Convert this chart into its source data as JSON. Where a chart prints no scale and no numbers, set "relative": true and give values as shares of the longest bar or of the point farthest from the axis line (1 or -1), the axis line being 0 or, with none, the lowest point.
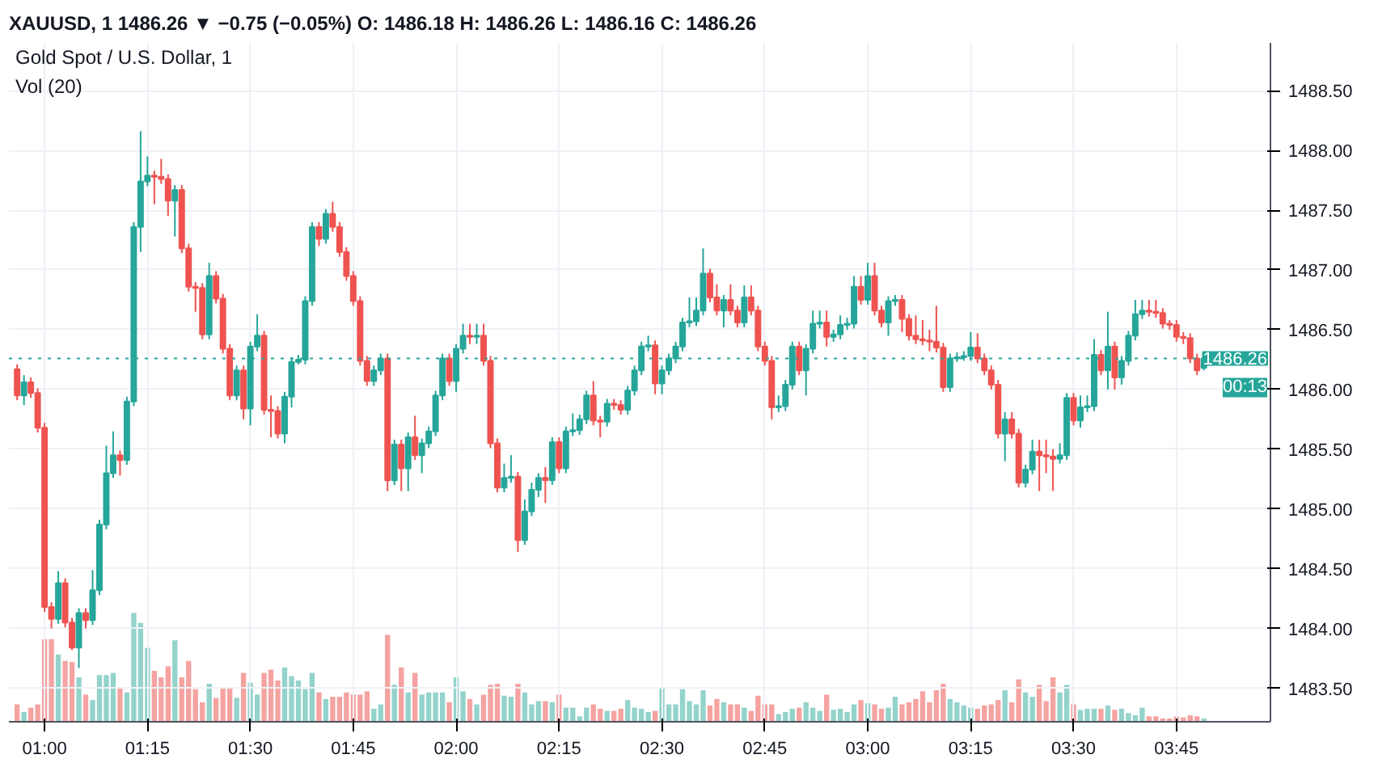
{
  "chart_data": [
    {
      "type": "candlestick",
      "title": "XAUUSD, 1  1486.26 ▼ −0.75 (−0.05%)  O: 1486.18  H: 1486.26  L: 1486.16  C: 1486.26",
      "subtitle": "Gold Spot / U.S. Dollar, 1",
      "grid": true,
      "ylim": [
        1483.22,
        1488.9
      ],
      "yticks": [
        {
          "value": 1483.5,
          "label": "1483.50"
        },
        {
          "value": 1484,
          "label": "1484.00"
        },
        {
          "value": 1484.5,
          "label": "1484.50"
        },
        {
          "value": 1485,
          "label": "1485.00"
        },
        {
          "value": 1485.5,
          "label": "1485.50"
        },
        {
          "value": 1486,
          "label": "1486.00"
        },
        {
          "value": 1486.5,
          "label": "1486.50"
        },
        {
          "value": 1487,
          "label": "1487.00"
        },
        {
          "value": 1487.5,
          "label": "1487.50"
        },
        {
          "value": 1488,
          "label": "1488.00"
        },
        {
          "value": 1488.5,
          "label": "1488.50"
        }
      ],
      "ref_lines": [
        {
          "axis": "y",
          "value": 1486.26,
          "label": "1486.26",
          "color": "#26a69a",
          "line_style": "dotted"
        }
      ],
      "annotations": [
        "00:13"
      ],
      "categories": [
        null,
        null,
        null,
        null,
        "01:00",
        null,
        null,
        null,
        null,
        null,
        null,
        null,
        null,
        null,
        null,
        null,
        null,
        null,
        null,
        "01:15",
        null,
        null,
        null,
        null,
        null,
        null,
        null,
        null,
        null,
        null,
        null,
        null,
        null,
        null,
        "01:30",
        null,
        null,
        null,
        null,
        null,
        null,
        null,
        null,
        null,
        null,
        null,
        null,
        null,
        null,
        "01:45",
        null,
        null,
        null,
        null,
        null,
        null,
        null,
        null,
        null,
        null,
        null,
        null,
        null,
        null,
        "02:00",
        null,
        null,
        null,
        null,
        null,
        null,
        null,
        null,
        null,
        null,
        null,
        null,
        null,
        null,
        "02:15",
        null,
        null,
        null,
        null,
        null,
        null,
        null,
        null,
        null,
        null,
        null,
        null,
        null,
        null,
        "02:30",
        null,
        null,
        null,
        null,
        null,
        null,
        null,
        null,
        null,
        null,
        null,
        null,
        null,
        null,
        "02:45",
        null,
        null,
        null,
        null,
        null,
        null,
        null,
        null,
        null,
        null,
        null,
        null,
        null,
        null,
        "03:00",
        null,
        null,
        null,
        null,
        null,
        null,
        null,
        null,
        null,
        null,
        null,
        null,
        null,
        null,
        "03:15",
        null,
        null,
        null,
        null,
        null,
        null,
        null,
        null,
        null,
        null,
        null,
        null,
        null,
        null,
        "03:30",
        null,
        null,
        null,
        null,
        null,
        null,
        null,
        null,
        null,
        null,
        null,
        null,
        null,
        null,
        "03:45",
        null,
        null,
        null,
        null
      ],
      "ohlc": [
        [
          1486.17,
          1486.21,
          1485.91,
          1485.95
        ],
        [
          1485.95,
          1486.12,
          1485.87,
          1486.06
        ],
        [
          1486.06,
          1486.1,
          1485.93,
          1485.97
        ],
        [
          1485.97,
          1486.01,
          1485.64,
          1485.68
        ],
        [
          1485.68,
          1485.72,
          1484.14,
          1484.18
        ],
        [
          1484.18,
          1484.22,
          1484.0,
          1484.08
        ],
        [
          1484.08,
          1484.48,
          1484.04,
          1484.38
        ],
        [
          1484.38,
          1484.42,
          1484.01,
          1484.05
        ],
        [
          1484.05,
          1484.09,
          1483.82,
          1483.84
        ],
        [
          1483.84,
          1484.17,
          1483.67,
          1484.13
        ],
        [
          1484.13,
          1484.17,
          1484.0,
          1484.07
        ],
        [
          1484.07,
          1484.49,
          1484.03,
          1484.32
        ],
        [
          1484.32,
          1484.91,
          1484.28,
          1484.87
        ],
        [
          1484.87,
          1485.53,
          1484.83,
          1485.3
        ],
        [
          1485.3,
          1485.65,
          1485.26,
          1485.45
        ],
        [
          1485.45,
          1485.49,
          1485.28,
          1485.41
        ],
        [
          1485.41,
          1485.94,
          1485.37,
          1485.9
        ],
        [
          1485.9,
          1487.4,
          1485.86,
          1487.36
        ],
        [
          1487.36,
          1488.16,
          1487.15,
          1487.74
        ],
        [
          1487.74,
          1487.95,
          1487.7,
          1487.79
        ],
        [
          1487.79,
          1487.83,
          1487.55,
          1487.78
        ],
        [
          1487.78,
          1487.93,
          1487.72,
          1487.76
        ],
        [
          1487.76,
          1487.8,
          1487.45,
          1487.58
        ],
        [
          1487.58,
          1487.71,
          1487.28,
          1487.67
        ],
        [
          1487.67,
          1487.71,
          1487.14,
          1487.18
        ],
        [
          1487.18,
          1487.22,
          1486.82,
          1486.86
        ],
        [
          1486.86,
          1486.9,
          1486.65,
          1486.85
        ],
        [
          1486.85,
          1486.89,
          1486.42,
          1486.46
        ],
        [
          1486.46,
          1487.06,
          1486.42,
          1486.95
        ],
        [
          1486.95,
          1486.99,
          1486.72,
          1486.76
        ],
        [
          1486.76,
          1486.8,
          1486.3,
          1486.34
        ],
        [
          1486.34,
          1486.38,
          1485.91,
          1485.95
        ],
        [
          1485.95,
          1486.2,
          1485.91,
          1486.16
        ],
        [
          1486.16,
          1486.2,
          1485.75,
          1485.84
        ],
        [
          1485.84,
          1486.4,
          1485.7,
          1486.36
        ],
        [
          1486.36,
          1486.63,
          1486.32,
          1486.45
        ],
        [
          1486.45,
          1486.49,
          1485.79,
          1485.83
        ],
        [
          1485.83,
          1485.95,
          1485.6,
          1485.82
        ],
        [
          1485.82,
          1485.86,
          1485.59,
          1485.63
        ],
        [
          1485.63,
          1485.98,
          1485.55,
          1485.94
        ],
        [
          1485.94,
          1486.27,
          1485.85,
          1486.23
        ],
        [
          1486.23,
          1486.29,
          1486.21,
          1486.25
        ],
        [
          1486.25,
          1486.78,
          1486.21,
          1486.74
        ],
        [
          1486.74,
          1487.4,
          1486.7,
          1487.36
        ],
        [
          1487.36,
          1487.4,
          1487.2,
          1487.26
        ],
        [
          1487.26,
          1487.51,
          1487.22,
          1487.47
        ],
        [
          1487.47,
          1487.57,
          1487.32,
          1487.36
        ],
        [
          1487.36,
          1487.4,
          1487.11,
          1487.15
        ],
        [
          1487.15,
          1487.19,
          1486.91,
          1486.95
        ],
        [
          1486.95,
          1486.99,
          1486.7,
          1486.74
        ],
        [
          1486.74,
          1486.78,
          1486.2,
          1486.24
        ],
        [
          1486.24,
          1486.28,
          1486.03,
          1486.07
        ],
        [
          1486.07,
          1486.2,
          1486.03,
          1486.16
        ],
        [
          1486.16,
          1486.3,
          1486.12,
          1486.26
        ],
        [
          1486.26,
          1486.3,
          1485.15,
          1485.24
        ],
        [
          1485.24,
          1485.58,
          1485.2,
          1485.54
        ],
        [
          1485.54,
          1485.58,
          1485.15,
          1485.34
        ],
        [
          1485.34,
          1485.64,
          1485.15,
          1485.6
        ],
        [
          1485.6,
          1485.78,
          1485.41,
          1485.45
        ],
        [
          1485.45,
          1485.59,
          1485.3,
          1485.55
        ],
        [
          1485.55,
          1485.69,
          1485.51,
          1485.65
        ],
        [
          1485.65,
          1485.99,
          1485.61,
          1485.95
        ],
        [
          1485.95,
          1486.3,
          1485.91,
          1486.26
        ],
        [
          1486.26,
          1486.3,
          1486.03,
          1486.07
        ],
        [
          1486.07,
          1486.38,
          1485.98,
          1486.34
        ],
        [
          1486.34,
          1486.55,
          1486.3,
          1486.45
        ],
        [
          1486.45,
          1486.55,
          1486.38,
          1486.44
        ],
        [
          1486.44,
          1486.55,
          1486.38,
          1486.45
        ],
        [
          1486.45,
          1486.55,
          1486.2,
          1486.24
        ],
        [
          1486.24,
          1486.28,
          1485.51,
          1485.55
        ],
        [
          1485.55,
          1485.59,
          1485.14,
          1485.18
        ],
        [
          1485.18,
          1485.38,
          1485.14,
          1485.26
        ],
        [
          1485.26,
          1485.45,
          1485.22,
          1485.27
        ],
        [
          1485.27,
          1485.31,
          1484.64,
          1484.74
        ],
        [
          1484.74,
          1485.08,
          1484.7,
          1484.98
        ],
        [
          1484.98,
          1485.22,
          1484.94,
          1485.16
        ],
        [
          1485.16,
          1485.3,
          1485.1,
          1485.26
        ],
        [
          1485.26,
          1485.35,
          1485.05,
          1485.24
        ],
        [
          1485.24,
          1485.6,
          1485.2,
          1485.56
        ],
        [
          1485.56,
          1485.6,
          1485.3,
          1485.34
        ],
        [
          1485.34,
          1485.69,
          1485.3,
          1485.65
        ],
        [
          1485.65,
          1485.8,
          1485.61,
          1485.66
        ],
        [
          1485.66,
          1485.79,
          1485.62,
          1485.75
        ],
        [
          1485.75,
          1485.99,
          1485.71,
          1485.95
        ],
        [
          1485.95,
          1486.07,
          1485.7,
          1485.74
        ],
        [
          1485.74,
          1485.78,
          1485.6,
          1485.73
        ],
        [
          1485.73,
          1485.92,
          1485.69,
          1485.88
        ],
        [
          1485.88,
          1485.92,
          1485.83,
          1485.87
        ],
        [
          1485.87,
          1485.91,
          1485.79,
          1485.83
        ],
        [
          1485.83,
          1486.03,
          1485.79,
          1485.99
        ],
        [
          1485.99,
          1486.2,
          1485.95,
          1486.16
        ],
        [
          1486.16,
          1486.4,
          1486.12,
          1486.36
        ],
        [
          1486.36,
          1486.45,
          1486.32,
          1486.37
        ],
        [
          1486.37,
          1486.41,
          1485.96,
          1486.05
        ],
        [
          1486.05,
          1486.2,
          1485.96,
          1486.16
        ],
        [
          1486.16,
          1486.3,
          1486.12,
          1486.26
        ],
        [
          1486.26,
          1486.4,
          1486.22,
          1486.36
        ],
        [
          1486.36,
          1486.6,
          1486.32,
          1486.56
        ],
        [
          1486.56,
          1486.77,
          1486.52,
          1486.57
        ],
        [
          1486.57,
          1486.77,
          1486.53,
          1486.66
        ],
        [
          1486.66,
          1487.18,
          1486.62,
          1486.97
        ],
        [
          1486.97,
          1487.01,
          1486.73,
          1486.77
        ],
        [
          1486.77,
          1486.88,
          1486.62,
          1486.66
        ],
        [
          1486.66,
          1486.79,
          1486.52,
          1486.75
        ],
        [
          1486.75,
          1486.88,
          1486.62,
          1486.66
        ],
        [
          1486.66,
          1486.7,
          1486.52,
          1486.56
        ],
        [
          1486.56,
          1486.87,
          1486.52,
          1486.77
        ],
        [
          1486.77,
          1486.87,
          1486.62,
          1486.66
        ],
        [
          1486.66,
          1486.7,
          1486.32,
          1486.36
        ],
        [
          1486.36,
          1486.4,
          1486.2,
          1486.24
        ],
        [
          1486.24,
          1486.28,
          1485.75,
          1485.85
        ],
        [
          1485.85,
          1485.95,
          1485.81,
          1485.86
        ],
        [
          1485.86,
          1486.08,
          1485.82,
          1486.04
        ],
        [
          1486.04,
          1486.4,
          1486.0,
          1486.36
        ],
        [
          1486.36,
          1486.4,
          1486.12,
          1486.16
        ],
        [
          1486.16,
          1486.38,
          1485.95,
          1486.34
        ],
        [
          1486.34,
          1486.66,
          1486.3,
          1486.55
        ],
        [
          1486.55,
          1486.66,
          1486.51,
          1486.56
        ],
        [
          1486.56,
          1486.66,
          1486.36,
          1486.44
        ],
        [
          1486.44,
          1486.5,
          1486.4,
          1486.46
        ],
        [
          1486.46,
          1486.62,
          1486.42,
          1486.54
        ],
        [
          1486.54,
          1486.6,
          1486.5,
          1486.55
        ],
        [
          1486.55,
          1486.95,
          1486.51,
          1486.86
        ],
        [
          1486.86,
          1486.95,
          1486.71,
          1486.75
        ],
        [
          1486.75,
          1487.06,
          1486.71,
          1486.95
        ],
        [
          1486.95,
          1487.06,
          1486.62,
          1486.66
        ],
        [
          1486.66,
          1486.7,
          1486.52,
          1486.56
        ],
        [
          1486.56,
          1486.78,
          1486.45,
          1486.74
        ],
        [
          1486.74,
          1486.79,
          1486.7,
          1486.75
        ],
        [
          1486.75,
          1486.79,
          1486.48,
          1486.59
        ],
        [
          1486.59,
          1486.63,
          1486.41,
          1486.45
        ],
        [
          1486.45,
          1486.62,
          1486.38,
          1486.42
        ],
        [
          1486.42,
          1486.58,
          1486.37,
          1486.41
        ],
        [
          1486.41,
          1486.5,
          1486.32,
          1486.4
        ],
        [
          1486.4,
          1486.7,
          1486.31,
          1486.35
        ],
        [
          1486.35,
          1486.39,
          1485.98,
          1486.02
        ],
        [
          1486.02,
          1486.3,
          1485.98,
          1486.26
        ],
        [
          1486.26,
          1486.31,
          1486.23,
          1486.27
        ],
        [
          1486.27,
          1486.32,
          1486.24,
          1486.28
        ],
        [
          1486.28,
          1486.48,
          1486.24,
          1486.35
        ],
        [
          1486.35,
          1486.47,
          1486.22,
          1486.26
        ],
        [
          1486.26,
          1486.3,
          1486.12,
          1486.16
        ],
        [
          1486.16,
          1486.2,
          1486.0,
          1486.04
        ],
        [
          1486.04,
          1486.08,
          1485.59,
          1485.63
        ],
        [
          1485.63,
          1485.81,
          1485.4,
          1485.75
        ],
        [
          1485.75,
          1485.81,
          1485.59,
          1485.63
        ],
        [
          1485.63,
          1485.67,
          1485.18,
          1485.22
        ],
        [
          1485.22,
          1485.37,
          1485.18,
          1485.33
        ],
        [
          1485.33,
          1485.58,
          1485.29,
          1485.48
        ],
        [
          1485.48,
          1485.58,
          1485.15,
          1485.45
        ],
        [
          1485.45,
          1485.58,
          1485.3,
          1485.44
        ],
        [
          1485.44,
          1485.5,
          1485.15,
          1485.42
        ],
        [
          1485.42,
          1485.55,
          1485.38,
          1485.45
        ],
        [
          1485.45,
          1485.97,
          1485.41,
          1485.93
        ],
        [
          1485.93,
          1485.97,
          1485.7,
          1485.74
        ],
        [
          1485.74,
          1485.95,
          1485.68,
          1485.85
        ],
        [
          1485.85,
          1485.95,
          1485.81,
          1485.86
        ],
        [
          1485.86,
          1486.42,
          1485.82,
          1486.29
        ],
        [
          1486.29,
          1486.33,
          1486.12,
          1486.16
        ],
        [
          1486.16,
          1486.65,
          1486.0,
          1486.36
        ],
        [
          1486.36,
          1486.4,
          1486.0,
          1486.1
        ],
        [
          1486.1,
          1486.28,
          1486.04,
          1486.24
        ],
        [
          1486.24,
          1486.49,
          1486.2,
          1486.45
        ],
        [
          1486.45,
          1486.75,
          1486.41,
          1486.63
        ],
        [
          1486.63,
          1486.75,
          1486.59,
          1486.66
        ],
        [
          1486.66,
          1486.75,
          1486.61,
          1486.65
        ],
        [
          1486.65,
          1486.75,
          1486.6,
          1486.64
        ],
        [
          1486.64,
          1486.68,
          1486.51,
          1486.55
        ],
        [
          1486.55,
          1486.58,
          1486.5,
          1486.54
        ],
        [
          1486.54,
          1486.58,
          1486.4,
          1486.44
        ],
        [
          1486.44,
          1486.48,
          1486.38,
          1486.43
        ],
        [
          1486.43,
          1486.47,
          1486.22,
          1486.26
        ],
        [
          1486.26,
          1486.3,
          1486.12,
          1486.16
        ],
        [
          1486.18,
          1486.26,
          1486.16,
          1486.26
        ]
      ],
      "colors": [
        "#ef5350",
        "#26a69a",
        "#ef5350",
        "#ef5350",
        "#ef5350",
        "#ef5350",
        "#26a69a",
        "#ef5350",
        "#ef5350",
        "#26a69a",
        "#ef5350",
        "#26a69a",
        "#26a69a",
        "#26a69a",
        "#26a69a",
        "#ef5350",
        "#26a69a",
        "#26a69a",
        "#26a69a",
        "#26a69a",
        "#ef5350",
        "#ef5350",
        "#ef5350",
        "#26a69a",
        "#ef5350",
        "#ef5350",
        "#ef5350",
        "#ef5350",
        "#26a69a",
        "#ef5350",
        "#ef5350",
        "#ef5350",
        "#26a69a",
        "#ef5350",
        "#26a69a",
        "#26a69a",
        "#ef5350",
        "#ef5350",
        "#ef5350",
        "#26a69a",
        "#26a69a",
        "#26a69a",
        "#26a69a",
        "#26a69a",
        "#ef5350",
        "#26a69a",
        "#ef5350",
        "#ef5350",
        "#ef5350",
        "#ef5350",
        "#ef5350",
        "#ef5350",
        "#26a69a",
        "#26a69a",
        "#ef5350",
        "#26a69a",
        "#ef5350",
        "#26a69a",
        "#ef5350",
        "#26a69a",
        "#26a69a",
        "#26a69a",
        "#26a69a",
        "#ef5350",
        "#26a69a",
        "#26a69a",
        "#ef5350",
        "#26a69a",
        "#ef5350",
        "#ef5350",
        "#ef5350",
        "#26a69a",
        "#26a69a",
        "#ef5350",
        "#26a69a",
        "#26a69a",
        "#26a69a",
        "#ef5350",
        "#26a69a",
        "#ef5350",
        "#26a69a",
        "#26a69a",
        "#26a69a",
        "#26a69a",
        "#ef5350",
        "#ef5350",
        "#26a69a",
        "#ef5350",
        "#ef5350",
        "#26a69a",
        "#26a69a",
        "#26a69a",
        "#26a69a",
        "#ef5350",
        "#26a69a",
        "#26a69a",
        "#26a69a",
        "#26a69a",
        "#26a69a",
        "#26a69a",
        "#26a69a",
        "#ef5350",
        "#ef5350",
        "#26a69a",
        "#ef5350",
        "#ef5350",
        "#26a69a",
        "#ef5350",
        "#ef5350",
        "#ef5350",
        "#ef5350",
        "#26a69a",
        "#26a69a",
        "#26a69a",
        "#ef5350",
        "#26a69a",
        "#26a69a",
        "#26a69a",
        "#ef5350",
        "#26a69a",
        "#26a69a",
        "#26a69a",
        "#26a69a",
        "#ef5350",
        "#26a69a",
        "#ef5350",
        "#ef5350",
        "#26a69a",
        "#26a69a",
        "#ef5350",
        "#ef5350",
        "#ef5350",
        "#ef5350",
        "#ef5350",
        "#ef5350",
        "#ef5350",
        "#26a69a",
        "#26a69a",
        "#26a69a",
        "#26a69a",
        "#ef5350",
        "#ef5350",
        "#ef5350",
        "#ef5350",
        "#26a69a",
        "#ef5350",
        "#ef5350",
        "#26a69a",
        "#26a69a",
        "#ef5350",
        "#ef5350",
        "#ef5350",
        "#26a69a",
        "#26a69a",
        "#ef5350",
        "#26a69a",
        "#26a69a",
        "#26a69a",
        "#ef5350",
        "#26a69a",
        "#ef5350",
        "#26a69a",
        "#26a69a",
        "#26a69a",
        "#26a69a",
        "#ef5350",
        "#ef5350",
        "#ef5350",
        "#ef5350",
        "#ef5350",
        "#ef5350",
        "#ef5350",
        "#ef5350",
        "#26a69a"
      ]
    },
    {
      "type": "bar",
      "title": "Vol (20)",
      "relative": true,
      "categories": [
        null,
        null,
        null,
        null,
        null,
        null,
        null,
        null,
        null,
        null,
        null,
        null,
        null,
        null,
        null,
        null,
        null,
        null,
        null,
        null,
        null,
        null,
        null,
        null,
        null,
        null,
        null,
        null,
        null,
        null,
        null,
        null,
        null,
        null,
        null,
        null,
        null,
        null,
        null,
        null,
        null,
        null,
        null,
        null,
        null,
        null,
        null,
        null,
        null,
        null,
        null,
        null,
        null,
        null,
        null,
        null,
        null,
        null,
        null,
        null,
        null,
        null,
        null,
        null,
        null,
        null,
        null,
        null,
        null,
        null,
        null,
        null,
        null,
        null,
        null,
        null,
        null,
        null,
        null,
        null,
        null,
        null,
        null,
        null,
        null,
        null,
        null,
        null,
        null,
        null,
        null,
        null,
        null,
        null,
        null,
        null,
        null,
        null,
        null,
        null,
        null,
        null,
        null,
        null,
        null,
        null,
        null,
        null,
        null,
        null,
        null,
        null,
        null,
        null,
        null,
        null,
        null,
        null,
        null,
        null,
        null,
        null,
        null,
        null,
        null,
        null,
        null,
        null,
        null,
        null,
        null,
        null,
        null,
        null,
        null,
        null,
        null,
        null,
        null,
        null,
        null,
        null,
        null,
        null,
        null,
        null,
        null,
        null,
        null,
        null,
        null,
        null,
        null,
        null,
        null,
        null,
        null,
        null,
        null,
        null,
        null,
        null,
        null,
        null,
        null,
        null,
        null,
        null,
        null,
        null,
        null,
        null,
        null,
        null
      ],
      "values": [
        0.16,
        0.09,
        0.13,
        0.16,
        0.76,
        0.76,
        0.62,
        0.56,
        0.55,
        0.41,
        0.25,
        0.2,
        0.43,
        0.43,
        0.45,
        0.31,
        0.27,
        1.0,
        0.91,
        0.68,
        0.47,
        0.41,
        0.51,
        0.75,
        0.41,
        0.56,
        0.3,
        0.18,
        0.35,
        0.22,
        0.32,
        0.32,
        0.22,
        0.45,
        0.36,
        0.25,
        0.45,
        0.48,
        0.38,
        0.5,
        0.42,
        0.38,
        0.3,
        0.45,
        0.27,
        0.21,
        0.23,
        0.23,
        0.27,
        0.25,
        0.25,
        0.28,
        0.12,
        0.16,
        0.8,
        0.34,
        0.5,
        0.27,
        0.45,
        0.25,
        0.27,
        0.27,
        0.27,
        0.18,
        0.41,
        0.28,
        0.21,
        0.16,
        0.25,
        0.34,
        0.35,
        0.24,
        0.23,
        0.35,
        0.27,
        0.16,
        0.19,
        0.19,
        0.18,
        0.25,
        0.13,
        0.13,
        0.05,
        0.13,
        0.16,
        0.12,
        0.1,
        0.1,
        0.12,
        0.2,
        0.13,
        0.12,
        0.09,
        0.1,
        0.31,
        0.16,
        0.16,
        0.3,
        0.19,
        0.16,
        0.29,
        0.15,
        0.21,
        0.18,
        0.16,
        0.16,
        0.13,
        0.1,
        0.24,
        0.16,
        0.16,
        0.07,
        0.09,
        0.12,
        0.13,
        0.18,
        0.13,
        0.1,
        0.25,
        0.11,
        0.12,
        0.09,
        0.16,
        0.2,
        0.17,
        0.16,
        0.12,
        0.13,
        0.23,
        0.16,
        0.18,
        0.21,
        0.28,
        0.18,
        0.29,
        0.35,
        0.21,
        0.18,
        0.15,
        0.13,
        0.12,
        0.15,
        0.16,
        0.2,
        0.29,
        0.18,
        0.39,
        0.27,
        0.23,
        0.34,
        0.19,
        0.41,
        0.27,
        0.34,
        0.16,
        0.11,
        0.12,
        0.12,
        0.12,
        0.15,
        0.11,
        0.12,
        0.08,
        0.06,
        0.13,
        0.05,
        0.05,
        0.03,
        0.03,
        0.05,
        0.04,
        0.06,
        0.05,
        0.03
      ],
      "colors": [
        "#f5a3a1",
        "#93d3cb",
        "#f5a3a1",
        "#f5a3a1",
        "#f5a3a1",
        "#f5a3a1",
        "#93d3cb",
        "#f5a3a1",
        "#f5a3a1",
        "#93d3cb",
        "#f5a3a1",
        "#93d3cb",
        "#93d3cb",
        "#93d3cb",
        "#93d3cb",
        "#f5a3a1",
        "#93d3cb",
        "#93d3cb",
        "#93d3cb",
        "#93d3cb",
        "#f5a3a1",
        "#f5a3a1",
        "#f5a3a1",
        "#93d3cb",
        "#f5a3a1",
        "#f5a3a1",
        "#f5a3a1",
        "#f5a3a1",
        "#93d3cb",
        "#f5a3a1",
        "#f5a3a1",
        "#f5a3a1",
        "#93d3cb",
        "#f5a3a1",
        "#93d3cb",
        "#93d3cb",
        "#f5a3a1",
        "#f5a3a1",
        "#f5a3a1",
        "#93d3cb",
        "#93d3cb",
        "#93d3cb",
        "#93d3cb",
        "#93d3cb",
        "#f5a3a1",
        "#93d3cb",
        "#f5a3a1",
        "#f5a3a1",
        "#f5a3a1",
        "#f5a3a1",
        "#f5a3a1",
        "#f5a3a1",
        "#93d3cb",
        "#93d3cb",
        "#f5a3a1",
        "#93d3cb",
        "#f5a3a1",
        "#93d3cb",
        "#f5a3a1",
        "#93d3cb",
        "#93d3cb",
        "#93d3cb",
        "#93d3cb",
        "#f5a3a1",
        "#93d3cb",
        "#93d3cb",
        "#f5a3a1",
        "#93d3cb",
        "#f5a3a1",
        "#f5a3a1",
        "#f5a3a1",
        "#93d3cb",
        "#93d3cb",
        "#f5a3a1",
        "#93d3cb",
        "#93d3cb",
        "#93d3cb",
        "#f5a3a1",
        "#93d3cb",
        "#f5a3a1",
        "#93d3cb",
        "#93d3cb",
        "#93d3cb",
        "#93d3cb",
        "#f5a3a1",
        "#f5a3a1",
        "#93d3cb",
        "#f5a3a1",
        "#f5a3a1",
        "#93d3cb",
        "#93d3cb",
        "#93d3cb",
        "#93d3cb",
        "#f5a3a1",
        "#93d3cb",
        "#93d3cb",
        "#93d3cb",
        "#93d3cb",
        "#93d3cb",
        "#93d3cb",
        "#93d3cb",
        "#f5a3a1",
        "#f5a3a1",
        "#93d3cb",
        "#f5a3a1",
        "#f5a3a1",
        "#93d3cb",
        "#f5a3a1",
        "#f5a3a1",
        "#f5a3a1",
        "#f5a3a1",
        "#93d3cb",
        "#93d3cb",
        "#93d3cb",
        "#f5a3a1",
        "#93d3cb",
        "#93d3cb",
        "#93d3cb",
        "#f5a3a1",
        "#93d3cb",
        "#93d3cb",
        "#93d3cb",
        "#93d3cb",
        "#f5a3a1",
        "#93d3cb",
        "#f5a3a1",
        "#f5a3a1",
        "#93d3cb",
        "#93d3cb",
        "#f5a3a1",
        "#f5a3a1",
        "#f5a3a1",
        "#f5a3a1",
        "#f5a3a1",
        "#f5a3a1",
        "#f5a3a1",
        "#93d3cb",
        "#93d3cb",
        "#93d3cb",
        "#93d3cb",
        "#f5a3a1",
        "#f5a3a1",
        "#f5a3a1",
        "#f5a3a1",
        "#93d3cb",
        "#f5a3a1",
        "#f5a3a1",
        "#93d3cb",
        "#93d3cb",
        "#f5a3a1",
        "#f5a3a1",
        "#f5a3a1",
        "#93d3cb",
        "#93d3cb",
        "#f5a3a1",
        "#93d3cb",
        "#93d3cb",
        "#93d3cb",
        "#f5a3a1",
        "#93d3cb",
        "#f5a3a1",
        "#93d3cb",
        "#93d3cb",
        "#93d3cb",
        "#93d3cb",
        "#f5a3a1",
        "#f5a3a1",
        "#f5a3a1",
        "#f5a3a1",
        "#f5a3a1",
        "#f5a3a1",
        "#f5a3a1",
        "#f5a3a1",
        "#93d3cb"
      ]
    }
  ]
}
